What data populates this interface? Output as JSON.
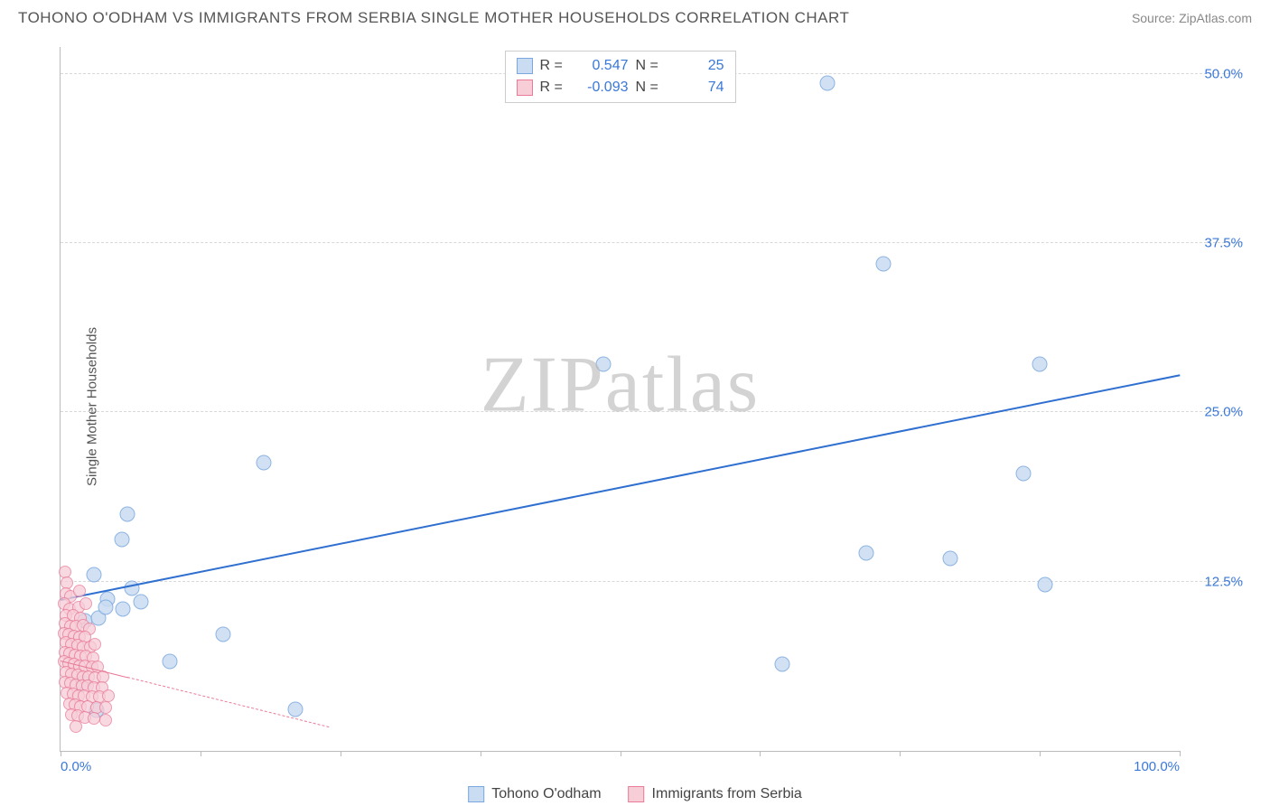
{
  "header": {
    "title": "TOHONO O'ODHAM VS IMMIGRANTS FROM SERBIA SINGLE MOTHER HOUSEHOLDS CORRELATION CHART",
    "source": "Source: ZipAtlas.com"
  },
  "watermark": "ZIPatlas",
  "chart": {
    "type": "scatter",
    "ylabel": "Single Mother Households",
    "xlim": [
      0,
      100
    ],
    "ylim": [
      0,
      52
    ],
    "background_color": "#ffffff",
    "grid_color": "#d8d8d8",
    "axis_color": "#bbbbbb",
    "tick_label_color": "#3a78d8",
    "tick_fontsize": 15,
    "label_fontsize": 15,
    "yticks": [
      {
        "v": 12.5,
        "label": "12.5%"
      },
      {
        "v": 25.0,
        "label": "25.0%"
      },
      {
        "v": 37.5,
        "label": "37.5%"
      },
      {
        "v": 50.0,
        "label": "50.0%"
      }
    ],
    "xticks": [
      {
        "v": 0,
        "label": "0.0%"
      },
      {
        "v": 12.5,
        "label": ""
      },
      {
        "v": 25.0,
        "label": ""
      },
      {
        "v": 37.5,
        "label": ""
      },
      {
        "v": 50.0,
        "label": ""
      },
      {
        "v": 62.5,
        "label": ""
      },
      {
        "v": 75.0,
        "label": ""
      },
      {
        "v": 87.5,
        "label": ""
      },
      {
        "v": 100,
        "label": "100.0%"
      }
    ],
    "series": [
      {
        "name": "Tohono O'odham",
        "marker_fill": "#c9dcf2",
        "marker_stroke": "#7aa7de",
        "marker_size": 17,
        "marker_opacity": 0.85,
        "trend": {
          "x0": 0,
          "y0": 11.2,
          "x1": 100,
          "y1": 27.8,
          "color": "#2f6fd0",
          "width": 2.5,
          "dash": "solid"
        },
        "R": "0.547",
        "N": "25",
        "points": [
          [
            68.5,
            49.3
          ],
          [
            73.5,
            36.0
          ],
          [
            48.5,
            28.6
          ],
          [
            87.5,
            28.6
          ],
          [
            18.2,
            21.3
          ],
          [
            86.0,
            20.5
          ],
          [
            6.0,
            17.5
          ],
          [
            5.5,
            15.6
          ],
          [
            72.0,
            14.6
          ],
          [
            79.5,
            14.2
          ],
          [
            88.0,
            12.3
          ],
          [
            3.0,
            13.0
          ],
          [
            4.2,
            11.2
          ],
          [
            7.2,
            11.0
          ],
          [
            5.6,
            10.5
          ],
          [
            2.2,
            9.6
          ],
          [
            3.4,
            9.8
          ],
          [
            14.5,
            8.6
          ],
          [
            64.5,
            6.4
          ],
          [
            9.8,
            6.6
          ],
          [
            2.0,
            5.0
          ],
          [
            21.0,
            3.1
          ],
          [
            3.2,
            3.0
          ],
          [
            4.0,
            10.6
          ],
          [
            6.4,
            12.0
          ]
        ]
      },
      {
        "name": "Immigrants from Serbia",
        "marker_fill": "#f7cdd7",
        "marker_stroke": "#e87b98",
        "marker_size": 14,
        "marker_opacity": 0.75,
        "trend": {
          "x0": 0,
          "y0": 6.7,
          "x1": 24,
          "y1": 1.8,
          "color": "#e87b98",
          "width": 1.2,
          "dash": "dashed",
          "solid_until": 6
        },
        "R": "-0.093",
        "N": "74",
        "points": [
          [
            0.4,
            13.2
          ],
          [
            0.6,
            12.4
          ],
          [
            0.5,
            11.6
          ],
          [
            0.9,
            11.4
          ],
          [
            1.7,
            11.8
          ],
          [
            0.3,
            10.9
          ],
          [
            0.8,
            10.5
          ],
          [
            1.6,
            10.6
          ],
          [
            2.3,
            10.9
          ],
          [
            0.5,
            10.0
          ],
          [
            1.1,
            10.0
          ],
          [
            1.8,
            9.8
          ],
          [
            0.4,
            9.4
          ],
          [
            0.9,
            9.2
          ],
          [
            1.4,
            9.2
          ],
          [
            2.0,
            9.3
          ],
          [
            2.6,
            9.0
          ],
          [
            0.3,
            8.7
          ],
          [
            0.7,
            8.6
          ],
          [
            1.2,
            8.5
          ],
          [
            1.7,
            8.4
          ],
          [
            2.2,
            8.4
          ],
          [
            0.5,
            8.0
          ],
          [
            1.0,
            7.9
          ],
          [
            1.5,
            7.8
          ],
          [
            2.0,
            7.7
          ],
          [
            2.7,
            7.7
          ],
          [
            3.1,
            7.9
          ],
          [
            0.4,
            7.3
          ],
          [
            0.8,
            7.2
          ],
          [
            1.3,
            7.1
          ],
          [
            1.8,
            7.0
          ],
          [
            2.3,
            7.0
          ],
          [
            2.9,
            6.9
          ],
          [
            0.3,
            6.6
          ],
          [
            0.7,
            6.5
          ],
          [
            1.2,
            6.4
          ],
          [
            1.7,
            6.3
          ],
          [
            2.2,
            6.3
          ],
          [
            2.8,
            6.2
          ],
          [
            3.3,
            6.2
          ],
          [
            0.5,
            5.8
          ],
          [
            1.0,
            5.7
          ],
          [
            1.5,
            5.6
          ],
          [
            2.0,
            5.5
          ],
          [
            2.5,
            5.5
          ],
          [
            3.1,
            5.4
          ],
          [
            3.8,
            5.5
          ],
          [
            0.4,
            5.1
          ],
          [
            0.9,
            5.0
          ],
          [
            1.4,
            4.9
          ],
          [
            1.9,
            4.8
          ],
          [
            2.4,
            4.8
          ],
          [
            3.0,
            4.7
          ],
          [
            3.7,
            4.7
          ],
          [
            0.6,
            4.3
          ],
          [
            1.1,
            4.2
          ],
          [
            1.6,
            4.1
          ],
          [
            2.1,
            4.1
          ],
          [
            2.8,
            4.0
          ],
          [
            3.5,
            4.0
          ],
          [
            4.3,
            4.1
          ],
          [
            0.8,
            3.5
          ],
          [
            1.3,
            3.4
          ],
          [
            1.8,
            3.3
          ],
          [
            2.4,
            3.3
          ],
          [
            3.2,
            3.2
          ],
          [
            4.0,
            3.2
          ],
          [
            1.0,
            2.7
          ],
          [
            1.5,
            2.6
          ],
          [
            2.2,
            2.5
          ],
          [
            3.0,
            2.4
          ],
          [
            4.0,
            2.3
          ],
          [
            1.4,
            1.8
          ]
        ]
      }
    ],
    "legend_top": {
      "rows": [
        {
          "swatch_fill": "#c9dcf2",
          "swatch_stroke": "#7aa7de",
          "r_label": "R =",
          "r_value": "0.547",
          "n_label": "N =",
          "n_value": "25"
        },
        {
          "swatch_fill": "#f7cdd7",
          "swatch_stroke": "#e87b98",
          "r_label": "R =",
          "r_value": "-0.093",
          "n_label": "N =",
          "n_value": "74"
        }
      ]
    },
    "legend_bottom": {
      "items": [
        {
          "swatch_fill": "#c9dcf2",
          "swatch_stroke": "#7aa7de",
          "label": "Tohono O'odham"
        },
        {
          "swatch_fill": "#f7cdd7",
          "swatch_stroke": "#e87b98",
          "label": "Immigrants from Serbia"
        }
      ]
    }
  }
}
